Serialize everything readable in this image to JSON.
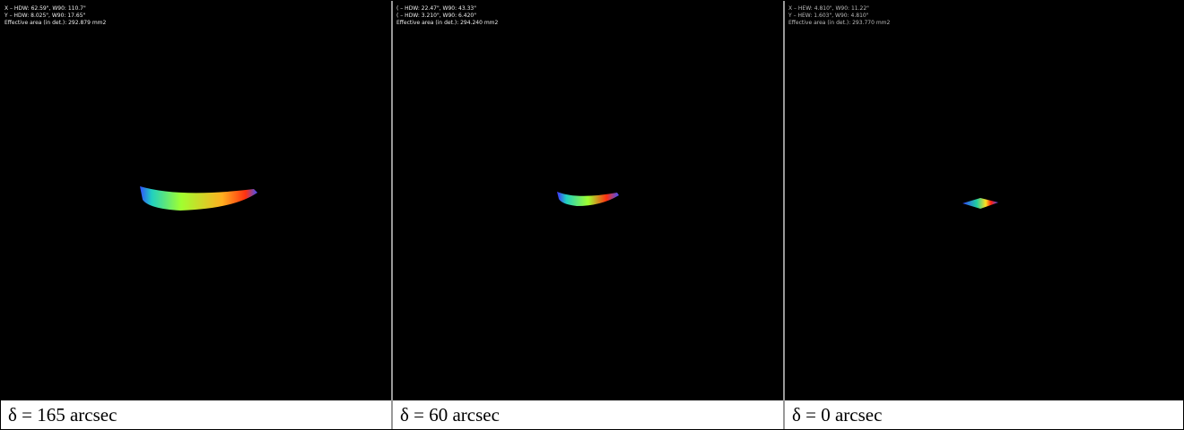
{
  "panels": [
    {
      "info": [
        "X – HDW: 62.59\", W90: 110.7\"",
        "Y – HDW: 8.025\", W90: 17.65\"",
        "Effective area (in det.): 292.879 mm2"
      ],
      "caption": "δ = 165 arcsec"
    },
    {
      "info": [
        "( – HDW: 22.47\", W90: 43.33\"",
        "( – HDW: 3.210\", W90: 6.420\"",
        "Effective area (in det.): 294.240 mm2"
      ],
      "caption": "δ = 60 arcsec"
    },
    {
      "info": [
        "X – HEW: 4.810\", W90: 11.22\"",
        "Y – HEW: 1.603\", W90: 4.810\"",
        "Effective area (in det.): 293.770 mm2"
      ],
      "caption": "δ = 0 arcsec"
    }
  ]
}
